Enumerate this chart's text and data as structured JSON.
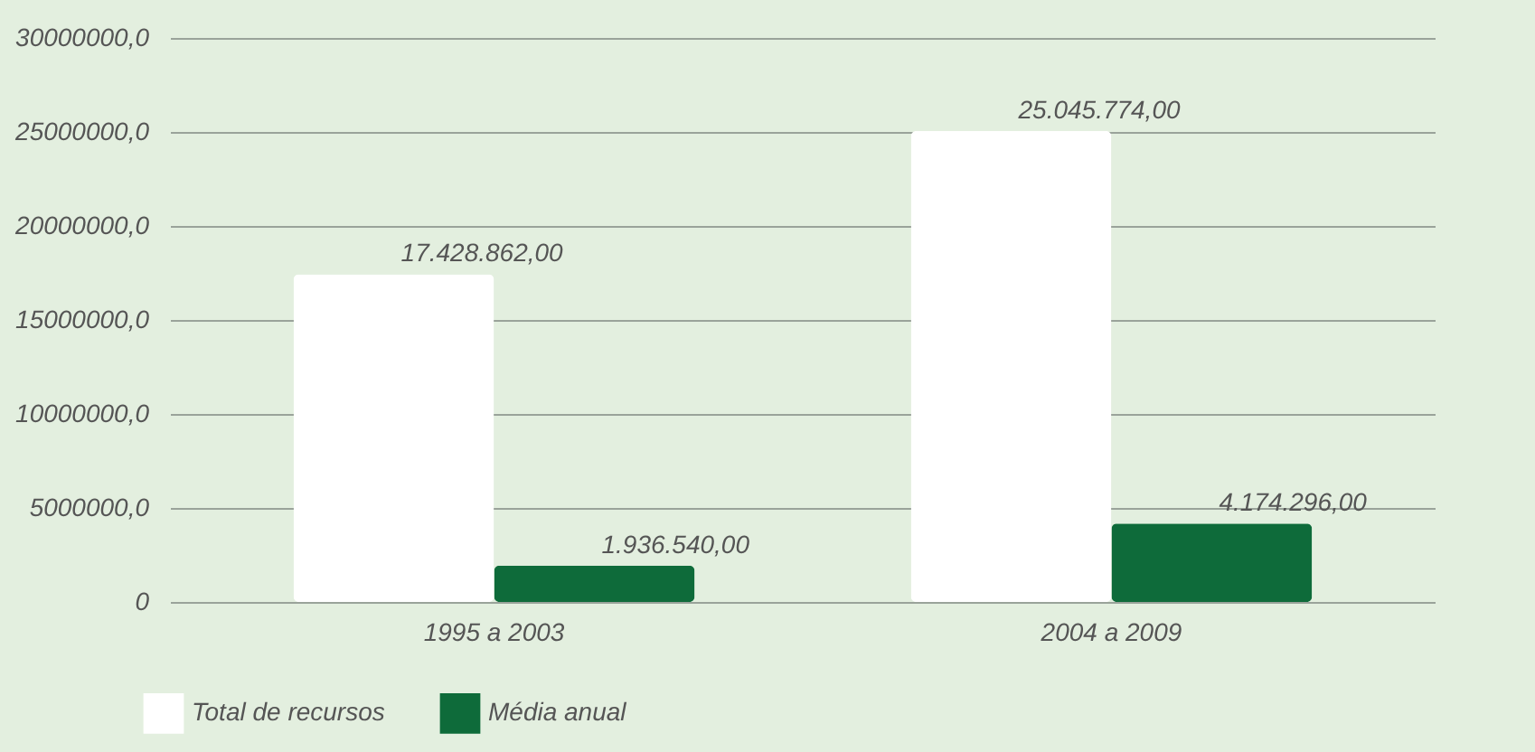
{
  "chart_data": {
    "type": "bar",
    "categories": [
      "1995 a 2003",
      "2004 a 2009"
    ],
    "series": [
      {
        "name": "Total de recursos",
        "color": "#ffffff",
        "values": [
          17428862,
          25045774
        ],
        "value_labels": [
          "17.428.862,00",
          "25.045.774,00"
        ]
      },
      {
        "name": "Média anual",
        "color": "#0e6b3a",
        "values": [
          1936540,
          4174296
        ],
        "value_labels": [
          "1.936.540,00",
          "4.174.296,00"
        ]
      }
    ],
    "ylim": [
      0,
      30000000
    ],
    "yticks": [
      0,
      {
        "value": 5000000,
        "label": "5000000,0"
      },
      {
        "value": 10000000,
        "label": "10000000,0"
      },
      {
        "value": 15000000,
        "label": "15000000,0"
      },
      {
        "value": 20000000,
        "label": "20000000,0"
      },
      {
        "value": 25000000,
        "label": "25000000,0"
      },
      {
        "value": 30000000,
        "label": "30000000,0"
      }
    ],
    "grid": "y",
    "legend": "bottom left"
  }
}
